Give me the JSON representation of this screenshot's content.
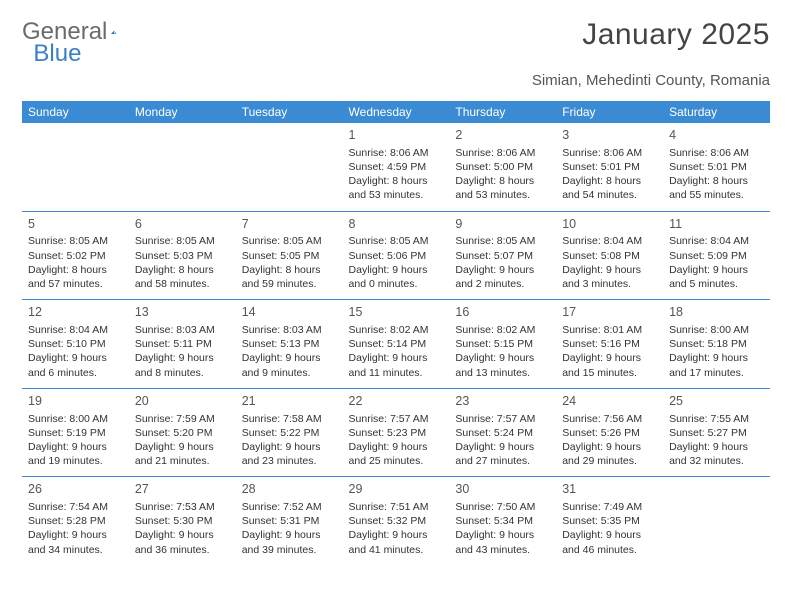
{
  "logo": {
    "text_general": "General",
    "text_blue": "Blue"
  },
  "title": "January 2025",
  "location": "Simian, Mehedinti County, Romania",
  "colors": {
    "header_bg": "#3b8bd4",
    "header_text": "#ffffff",
    "cell_border": "#3b8bd4",
    "body_bg": "#ffffff",
    "body_text": "#333333",
    "title_text": "#444444",
    "logo_gray": "#6b6b6b",
    "logo_blue": "#3b7fc4"
  },
  "weekdays": [
    "Sunday",
    "Monday",
    "Tuesday",
    "Wednesday",
    "Thursday",
    "Friday",
    "Saturday"
  ],
  "weeks": [
    [
      {},
      {},
      {},
      {
        "num": "1",
        "sunrise": "Sunrise: 8:06 AM",
        "sunset": "Sunset: 4:59 PM",
        "daylight1": "Daylight: 8 hours",
        "daylight2": "and 53 minutes."
      },
      {
        "num": "2",
        "sunrise": "Sunrise: 8:06 AM",
        "sunset": "Sunset: 5:00 PM",
        "daylight1": "Daylight: 8 hours",
        "daylight2": "and 53 minutes."
      },
      {
        "num": "3",
        "sunrise": "Sunrise: 8:06 AM",
        "sunset": "Sunset: 5:01 PM",
        "daylight1": "Daylight: 8 hours",
        "daylight2": "and 54 minutes."
      },
      {
        "num": "4",
        "sunrise": "Sunrise: 8:06 AM",
        "sunset": "Sunset: 5:01 PM",
        "daylight1": "Daylight: 8 hours",
        "daylight2": "and 55 minutes."
      }
    ],
    [
      {
        "num": "5",
        "sunrise": "Sunrise: 8:05 AM",
        "sunset": "Sunset: 5:02 PM",
        "daylight1": "Daylight: 8 hours",
        "daylight2": "and 57 minutes."
      },
      {
        "num": "6",
        "sunrise": "Sunrise: 8:05 AM",
        "sunset": "Sunset: 5:03 PM",
        "daylight1": "Daylight: 8 hours",
        "daylight2": "and 58 minutes."
      },
      {
        "num": "7",
        "sunrise": "Sunrise: 8:05 AM",
        "sunset": "Sunset: 5:05 PM",
        "daylight1": "Daylight: 8 hours",
        "daylight2": "and 59 minutes."
      },
      {
        "num": "8",
        "sunrise": "Sunrise: 8:05 AM",
        "sunset": "Sunset: 5:06 PM",
        "daylight1": "Daylight: 9 hours",
        "daylight2": "and 0 minutes."
      },
      {
        "num": "9",
        "sunrise": "Sunrise: 8:05 AM",
        "sunset": "Sunset: 5:07 PM",
        "daylight1": "Daylight: 9 hours",
        "daylight2": "and 2 minutes."
      },
      {
        "num": "10",
        "sunrise": "Sunrise: 8:04 AM",
        "sunset": "Sunset: 5:08 PM",
        "daylight1": "Daylight: 9 hours",
        "daylight2": "and 3 minutes."
      },
      {
        "num": "11",
        "sunrise": "Sunrise: 8:04 AM",
        "sunset": "Sunset: 5:09 PM",
        "daylight1": "Daylight: 9 hours",
        "daylight2": "and 5 minutes."
      }
    ],
    [
      {
        "num": "12",
        "sunrise": "Sunrise: 8:04 AM",
        "sunset": "Sunset: 5:10 PM",
        "daylight1": "Daylight: 9 hours",
        "daylight2": "and 6 minutes."
      },
      {
        "num": "13",
        "sunrise": "Sunrise: 8:03 AM",
        "sunset": "Sunset: 5:11 PM",
        "daylight1": "Daylight: 9 hours",
        "daylight2": "and 8 minutes."
      },
      {
        "num": "14",
        "sunrise": "Sunrise: 8:03 AM",
        "sunset": "Sunset: 5:13 PM",
        "daylight1": "Daylight: 9 hours",
        "daylight2": "and 9 minutes."
      },
      {
        "num": "15",
        "sunrise": "Sunrise: 8:02 AM",
        "sunset": "Sunset: 5:14 PM",
        "daylight1": "Daylight: 9 hours",
        "daylight2": "and 11 minutes."
      },
      {
        "num": "16",
        "sunrise": "Sunrise: 8:02 AM",
        "sunset": "Sunset: 5:15 PM",
        "daylight1": "Daylight: 9 hours",
        "daylight2": "and 13 minutes."
      },
      {
        "num": "17",
        "sunrise": "Sunrise: 8:01 AM",
        "sunset": "Sunset: 5:16 PM",
        "daylight1": "Daylight: 9 hours",
        "daylight2": "and 15 minutes."
      },
      {
        "num": "18",
        "sunrise": "Sunrise: 8:00 AM",
        "sunset": "Sunset: 5:18 PM",
        "daylight1": "Daylight: 9 hours",
        "daylight2": "and 17 minutes."
      }
    ],
    [
      {
        "num": "19",
        "sunrise": "Sunrise: 8:00 AM",
        "sunset": "Sunset: 5:19 PM",
        "daylight1": "Daylight: 9 hours",
        "daylight2": "and 19 minutes."
      },
      {
        "num": "20",
        "sunrise": "Sunrise: 7:59 AM",
        "sunset": "Sunset: 5:20 PM",
        "daylight1": "Daylight: 9 hours",
        "daylight2": "and 21 minutes."
      },
      {
        "num": "21",
        "sunrise": "Sunrise: 7:58 AM",
        "sunset": "Sunset: 5:22 PM",
        "daylight1": "Daylight: 9 hours",
        "daylight2": "and 23 minutes."
      },
      {
        "num": "22",
        "sunrise": "Sunrise: 7:57 AM",
        "sunset": "Sunset: 5:23 PM",
        "daylight1": "Daylight: 9 hours",
        "daylight2": "and 25 minutes."
      },
      {
        "num": "23",
        "sunrise": "Sunrise: 7:57 AM",
        "sunset": "Sunset: 5:24 PM",
        "daylight1": "Daylight: 9 hours",
        "daylight2": "and 27 minutes."
      },
      {
        "num": "24",
        "sunrise": "Sunrise: 7:56 AM",
        "sunset": "Sunset: 5:26 PM",
        "daylight1": "Daylight: 9 hours",
        "daylight2": "and 29 minutes."
      },
      {
        "num": "25",
        "sunrise": "Sunrise: 7:55 AM",
        "sunset": "Sunset: 5:27 PM",
        "daylight1": "Daylight: 9 hours",
        "daylight2": "and 32 minutes."
      }
    ],
    [
      {
        "num": "26",
        "sunrise": "Sunrise: 7:54 AM",
        "sunset": "Sunset: 5:28 PM",
        "daylight1": "Daylight: 9 hours",
        "daylight2": "and 34 minutes."
      },
      {
        "num": "27",
        "sunrise": "Sunrise: 7:53 AM",
        "sunset": "Sunset: 5:30 PM",
        "daylight1": "Daylight: 9 hours",
        "daylight2": "and 36 minutes."
      },
      {
        "num": "28",
        "sunrise": "Sunrise: 7:52 AM",
        "sunset": "Sunset: 5:31 PM",
        "daylight1": "Daylight: 9 hours",
        "daylight2": "and 39 minutes."
      },
      {
        "num": "29",
        "sunrise": "Sunrise: 7:51 AM",
        "sunset": "Sunset: 5:32 PM",
        "daylight1": "Daylight: 9 hours",
        "daylight2": "and 41 minutes."
      },
      {
        "num": "30",
        "sunrise": "Sunrise: 7:50 AM",
        "sunset": "Sunset: 5:34 PM",
        "daylight1": "Daylight: 9 hours",
        "daylight2": "and 43 minutes."
      },
      {
        "num": "31",
        "sunrise": "Sunrise: 7:49 AM",
        "sunset": "Sunset: 5:35 PM",
        "daylight1": "Daylight: 9 hours",
        "daylight2": "and 46 minutes."
      },
      {}
    ]
  ]
}
